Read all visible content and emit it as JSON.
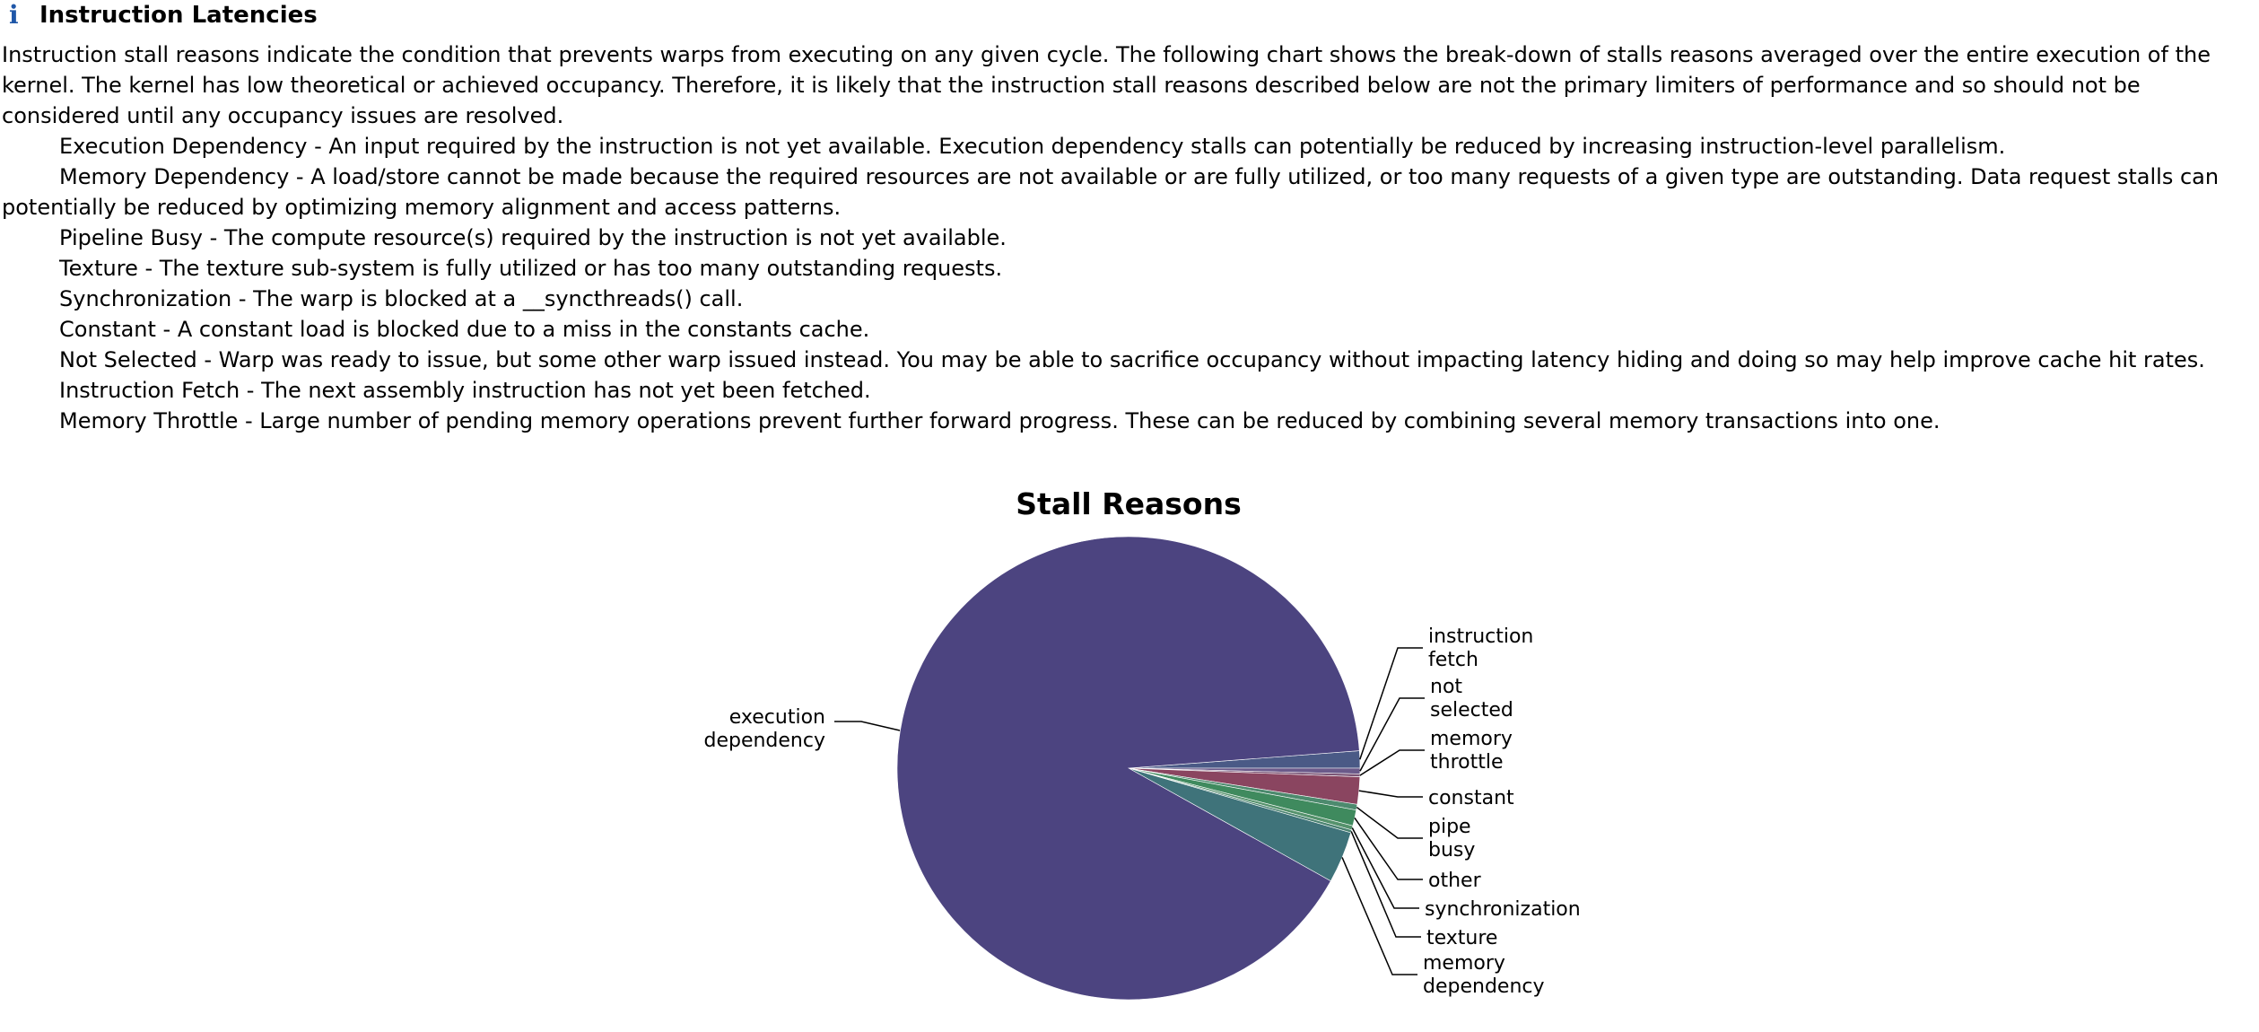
{
  "section": {
    "icon": "info-icon",
    "icon_glyph": "i",
    "title": "Instruction Latencies",
    "description": "Instruction stall reasons indicate the condition that prevents warps from executing on any given cycle. The following chart shows the break-down of stalls reasons averaged over the entire execution of the kernel. The kernel has low theoretical or achieved occupancy. Therefore, it is likely that the instruction stall reasons described below are not the primary limiters of performance and so should not be considered until any occupancy issues are resolved."
  },
  "reasons": [
    "Execution Dependency - An input required by the instruction is not yet available. Execution dependency stalls can potentially be reduced by increasing instruction-level parallelism.",
    "Memory Dependency - A load/store cannot be made because the required resources are not available or are fully utilized, or too many requests of a given type are outstanding. Data request stalls can potentially be reduced by optimizing memory alignment and access patterns.",
    "Pipeline Busy - The compute resource(s) required by the instruction is not yet available.",
    "Texture - The texture sub-system is fully utilized or has too many outstanding requests.",
    "Synchronization - The warp is blocked at a __syncthreads() call.",
    "Constant - A constant load is blocked due to a miss in the constants cache.",
    "Not Selected - Warp was ready to issue, but some other warp issued instead. You may be able to sacrifice occupancy without impacting latency hiding and doing so may help improve cache hit rates.",
    "Instruction Fetch - The next assembly instruction has not yet been fetched.",
    "Memory Throttle - Large number of pending memory operations prevent further forward progress. These can be reduced by combining several memory transactions into one."
  ],
  "chart_data": {
    "type": "pie",
    "title": "Stall Reasons",
    "slices": [
      {
        "label": [
          "instruction",
          "fetch"
        ],
        "value": 1.2,
        "color": "#4a5a86"
      },
      {
        "label": [
          "not",
          "selected"
        ],
        "value": 0.4,
        "color": "#6b5a8a"
      },
      {
        "label": [
          "memory",
          "throttle"
        ],
        "value": 0.2,
        "color": "#7a5576"
      },
      {
        "label": [
          "constant"
        ],
        "value": 1.9,
        "color": "#8a4560"
      },
      {
        "label": [
          "pipe",
          "busy"
        ],
        "value": 0.4,
        "color": "#4d8a6e"
      },
      {
        "label": [
          "other"
        ],
        "value": 1.1,
        "color": "#3f8a5e"
      },
      {
        "label": [
          "synchronization"
        ],
        "value": 0.3,
        "color": "#55926c"
      },
      {
        "label": [
          "texture"
        ],
        "value": 0.2,
        "color": "#4a8270"
      },
      {
        "label": [
          "memory",
          "dependency"
        ],
        "value": 3.6,
        "color": "#3f737a"
      },
      {
        "label": [
          "execution",
          "dependency"
        ],
        "value": 90.7,
        "color": "#4c4480"
      }
    ]
  }
}
